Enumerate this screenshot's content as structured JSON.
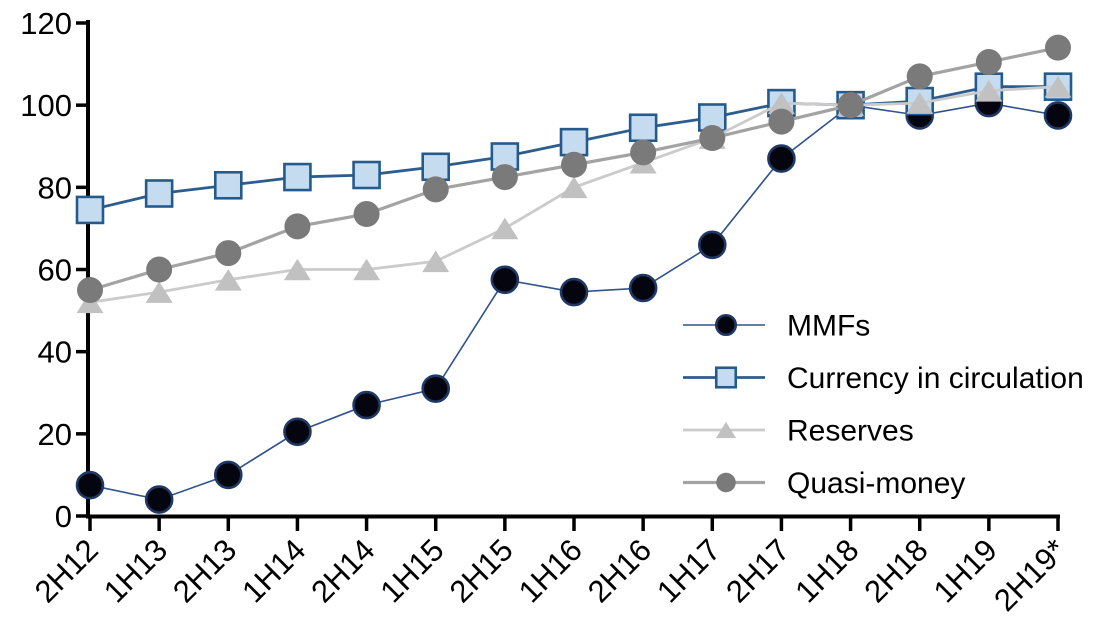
{
  "chart_data": {
    "type": "line",
    "title": "",
    "xlabel": "",
    "ylabel": "",
    "categories": [
      "2H12",
      "1H13",
      "2H13",
      "1H14",
      "2H14",
      "1H15",
      "2H15",
      "1H16",
      "2H16",
      "1H17",
      "2H17",
      "1H18",
      "2H18",
      "1H19",
      "2H19*"
    ],
    "series": [
      {
        "name": "MMFs",
        "marker": "circle",
        "marker_fill": "#05050f",
        "marker_stroke": "#1f3864",
        "line_color": "#31538c",
        "line_width": 1.6,
        "values": [
          7.5,
          4,
          10,
          20.5,
          27,
          31,
          57.5,
          54.5,
          55.5,
          66,
          87,
          100,
          97.5,
          100.5,
          97.5
        ]
      },
      {
        "name": "Currency in circulation",
        "marker": "square",
        "marker_fill": "#c5dcf0",
        "marker_stroke": "#255a8c",
        "line_color": "#2d5d8e",
        "line_width": 2.8,
        "values": [
          74.5,
          78.5,
          80.5,
          82.5,
          83,
          85,
          87.5,
          91,
          94.5,
          97,
          100.5,
          100,
          101,
          104.5,
          104.5
        ]
      },
      {
        "name": "Reserves",
        "marker": "triangle",
        "marker_fill": "#c1c1c1",
        "marker_stroke": "none",
        "line_color": "#cbcbcb",
        "line_width": 2.8,
        "values": [
          52,
          54.5,
          57.5,
          60,
          60,
          62,
          70,
          80,
          86,
          92,
          100.5,
          100,
          100.5,
          103.5,
          104.5
        ]
      },
      {
        "name": "Quasi-money",
        "marker": "circle",
        "marker_fill": "#7a7a7a",
        "marker_stroke": "none",
        "line_color": "#a3a3a3",
        "line_width": 3.2,
        "values": [
          55,
          60,
          64,
          70.5,
          73.5,
          79.5,
          82.5,
          85.5,
          88.5,
          92,
          96,
          100,
          107,
          110.5,
          114
        ]
      }
    ],
    "ylim": [
      0,
      120
    ],
    "yticks": [
      0,
      20,
      40,
      60,
      80,
      100,
      120
    ],
    "grid": false,
    "legend_position": "inside-right",
    "axis_color": "#000000",
    "text_color": "#000000"
  }
}
